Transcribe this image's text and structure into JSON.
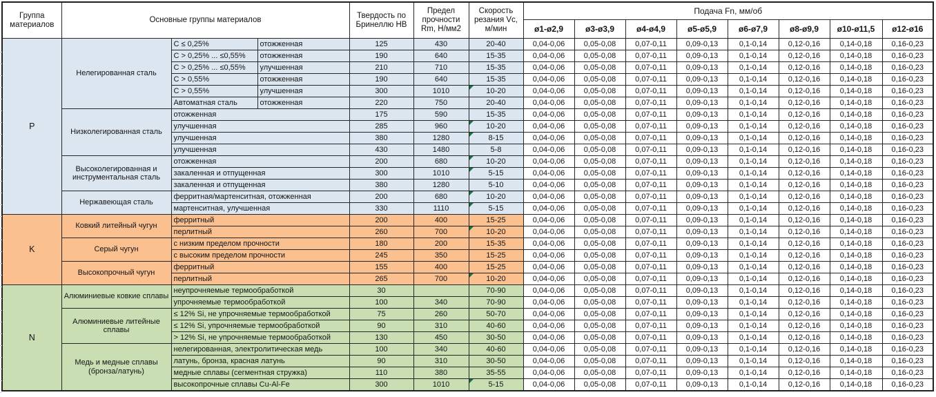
{
  "table": {
    "headers": {
      "group": "Группа материалов",
      "material_groups": "Основные группы материалов",
      "hardness": "Твердость по Бринеллю НВ",
      "strength": "Предел прочности Rm, Н/мм2",
      "speed": "Скорость резания Vc, м/мин",
      "feed": "Подача Fn, мм/об",
      "feed_columns": [
        "ø1-ø2,9",
        "ø3-ø3,9",
        "ø4-ø4,9",
        "ø5-ø5,9",
        "ø6-ø7,9",
        "ø8-ø9,9",
        "ø10-ø11,5",
        "ø12-ø16"
      ]
    },
    "feed_values": [
      "0,04-0,06",
      "0,05-0,08",
      "0,07-0,11",
      "0,09-0,13",
      "0,1-0,14",
      "0,12-0,16",
      "0,14-0,18",
      "0,16-0,23"
    ],
    "marker_color": "#1d7044",
    "groups": [
      {
        "letter": "P",
        "color": "#DCE6F1",
        "subgroups": [
          {
            "name": "Нелегированная сталь",
            "rows": [
              {
                "c1": "C ≤ 0,25%",
                "c2": "отожженная",
                "hb": "125",
                "rm": "430",
                "vc": "20-40",
                "marker": false
              },
              {
                "c1": "C > 0,25% ... ≤0,55%",
                "c2": "отожженная",
                "hb": "190",
                "rm": "640",
                "vc": "15-35",
                "marker": false
              },
              {
                "c1": "C > 0,25% ... ≤0,55%",
                "c2": "улучшенная",
                "hb": "210",
                "rm": "710",
                "vc": "15-35",
                "marker": false
              },
              {
                "c1": "C > 0,55%",
                "c2": "отожженная",
                "hb": "190",
                "rm": "640",
                "vc": "15-35",
                "marker": false
              },
              {
                "c1": "C > 0,55%",
                "c2": "улучшенная",
                "hb": "300",
                "rm": "1010",
                "vc": "10-20",
                "marker": true
              },
              {
                "c1": "Автоматная сталь",
                "c2": "отожженная",
                "hb": "220",
                "rm": "750",
                "vc": "20-40",
                "marker": false
              }
            ]
          },
          {
            "name": "Низколегированная сталь",
            "rows": [
              {
                "desc": "отожженная",
                "hb": "175",
                "rm": "590",
                "vc": "15-35",
                "marker": false
              },
              {
                "desc": "улучшенная",
                "hb": "285",
                "rm": "960",
                "vc": "10-20",
                "marker": true
              },
              {
                "desc": "улучшенная",
                "hb": "380",
                "rm": "1280",
                "vc": "8-15",
                "marker": true
              },
              {
                "desc": "улучшенная",
                "hb": "430",
                "rm": "1480",
                "vc": "5-8",
                "marker": false
              }
            ]
          },
          {
            "name": "Высоколегированная и инструментальная сталь",
            "rows": [
              {
                "desc": "отожженная",
                "hb": "200",
                "rm": "680",
                "vc": "10-20",
                "marker": true
              },
              {
                "desc": "закаленная и отпущенная",
                "hb": "300",
                "rm": "1010",
                "vc": "5-15",
                "marker": true
              },
              {
                "desc": "закаленная и отпущенная",
                "hb": "380",
                "rm": "1280",
                "vc": "5-10",
                "marker": false
              }
            ]
          },
          {
            "name": "Нержавеющая сталь",
            "rows": [
              {
                "desc": "ферритная/мартенситная, отожженная",
                "hb": "200",
                "rm": "680",
                "vc": "10-20",
                "marker": true
              },
              {
                "desc": "мартенситная, улучшенная",
                "hb": "330",
                "rm": "1110",
                "vc": "5-15",
                "marker": true
              }
            ]
          }
        ]
      },
      {
        "letter": "K",
        "color": "#FAC090",
        "subgroups": [
          {
            "name": "Ковкий литейный чугун",
            "rows": [
              {
                "desc": "ферритный",
                "hb": "200",
                "rm": "400",
                "vc": "15-25",
                "marker": false
              },
              {
                "desc": "перлитный",
                "hb": "260",
                "rm": "700",
                "vc": "10-20",
                "marker": true
              }
            ]
          },
          {
            "name": "Серый чугун",
            "rows": [
              {
                "desc": "с низким пределом прочности",
                "hb": "180",
                "rm": "200",
                "vc": "15-35",
                "marker": false
              },
              {
                "desc": "с высоким пределом прочности",
                "hb": "245",
                "rm": "350",
                "vc": "15-25",
                "marker": false
              }
            ]
          },
          {
            "name": "Высокопрочный чугун",
            "rows": [
              {
                "desc": "ферритный",
                "hb": "155",
                "rm": "400",
                "vc": "15-25",
                "marker": false
              },
              {
                "desc": "перлитный",
                "hb": "265",
                "rm": "700",
                "vc": "10-20",
                "marker": true
              }
            ]
          }
        ]
      },
      {
        "letter": "N",
        "color": "#C9DFB3",
        "subgroups": [
          {
            "name": "Алюминиевые ковкие сплавы",
            "rows": [
              {
                "desc": "неупрочняемые термообработкой",
                "hb": "30",
                "rm": "",
                "vc": "70-90",
                "marker": false
              },
              {
                "desc": "упрочняемые термообработкой",
                "hb": "100",
                "rm": "340",
                "vc": "70-90",
                "marker": false
              }
            ]
          },
          {
            "name": "Алюминиевые литейные сплавы",
            "rows": [
              {
                "desc": "≤ 12% Si, не упрочняемые термообработкой",
                "hb": "75",
                "rm": "260",
                "vc": "50-70",
                "marker": false
              },
              {
                "desc": "≤ 12% Si, упрочняемые термообработкой",
                "hb": "90",
                "rm": "310",
                "vc": "40-60",
                "marker": false
              },
              {
                "desc": "> 12% Si, не упрочняемые термообработкой",
                "hb": "130",
                "rm": "450",
                "vc": "30-50",
                "marker": false
              }
            ]
          },
          {
            "name": "Медь и медные сплавы (бронза/латунь)",
            "rows": [
              {
                "desc": "нелегированная, электролитическая медь",
                "hb": "100",
                "rm": "340",
                "vc": "40-60",
                "marker": false
              },
              {
                "desc": "латунь, бронза, красная латунь",
                "hb": "90",
                "rm": "310",
                "vc": "30-50",
                "marker": false
              },
              {
                "desc": "медные сплавы (сегментная стружка)",
                "hb": "110",
                "rm": "380",
                "vc": "35-55",
                "marker": false
              },
              {
                "desc": "высокопрочные сплавы Cu-Al-Fe",
                "hb": "300",
                "rm": "1010",
                "vc": "5-15",
                "marker": true
              }
            ]
          }
        ]
      }
    ]
  }
}
